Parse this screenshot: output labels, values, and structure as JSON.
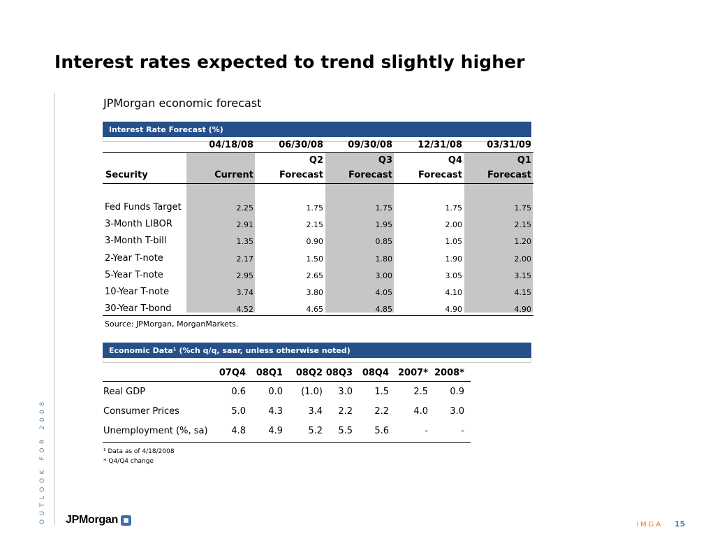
{
  "title": "Interest rates expected to trend slightly higher",
  "subtitle": "JPMorgan economic forecast",
  "side_text": "OUTLOOK FOR 2008",
  "rate_table": {
    "bar_label": "Interest Rate Forecast (%)",
    "dates": [
      "04/18/08",
      "06/30/08",
      "09/30/08",
      "12/31/08",
      "03/31/09"
    ],
    "quarters": [
      "",
      "Q2",
      "Q3",
      "Q4",
      "Q1"
    ],
    "security_label": "Security",
    "kinds": [
      "Current",
      "Forecast",
      "Forecast",
      "Forecast",
      "Forecast"
    ],
    "rows": [
      {
        "name": "Fed Funds Target",
        "values": [
          "2.25",
          "1.75",
          "1.75",
          "1.75",
          "1.75"
        ]
      },
      {
        "name": "3-Month LIBOR",
        "values": [
          "2.91",
          "2.15",
          "1.95",
          "2.00",
          "2.15"
        ]
      },
      {
        "name": "3-Month T-bill",
        "values": [
          "1.35",
          "0.90",
          "0.85",
          "1.05",
          "1.20"
        ]
      },
      {
        "name": "2-Year T-note",
        "values": [
          "2.17",
          "1.50",
          "1.80",
          "1.90",
          "2.00"
        ]
      },
      {
        "name": "5-Year T-note",
        "values": [
          "2.95",
          "2.65",
          "3.00",
          "3.05",
          "3.15"
        ]
      },
      {
        "name": "10-Year T-note",
        "values": [
          "3.74",
          "3.80",
          "4.05",
          "4.10",
          "4.15"
        ]
      },
      {
        "name": "30-Year T-bond",
        "values": [
          "4.52",
          "4.65",
          "4.85",
          "4.90",
          "4.90"
        ]
      }
    ],
    "source": "Source: JPMorgan, MorganMarkets."
  },
  "econ_table": {
    "bar_label": "Economic Data¹ (%ch q/q, saar, unless otherwise noted)",
    "columns": [
      "07Q4",
      "08Q1",
      "08Q2",
      "08Q3",
      "08Q4",
      "2007*",
      "2008*"
    ],
    "rows": [
      {
        "name": "Real GDP",
        "values": [
          "0.6",
          "0.0",
          "(1.0)",
          "3.0",
          "1.5",
          "2.5",
          "0.9"
        ]
      },
      {
        "name": "Consumer Prices",
        "values": [
          "5.0",
          "4.3",
          "3.4",
          "2.2",
          "2.2",
          "4.0",
          "3.0"
        ]
      },
      {
        "name": "Unemployment (%, sa)",
        "values": [
          "4.8",
          "4.9",
          "5.2",
          "5.5",
          "5.6",
          "-",
          "-"
        ]
      }
    ],
    "footnote1": "¹ Data as of 4/18/2008",
    "footnote2": "* Q4/Q4 change"
  },
  "footer": {
    "logo_text": "JPMorgan",
    "brand": "IMGA",
    "page_number": "15"
  },
  "colors": {
    "bar": "#26508a",
    "shade": "#c6c6c6",
    "brand_orange": "#e07b22",
    "accent_blue": "#5b7fa8"
  }
}
